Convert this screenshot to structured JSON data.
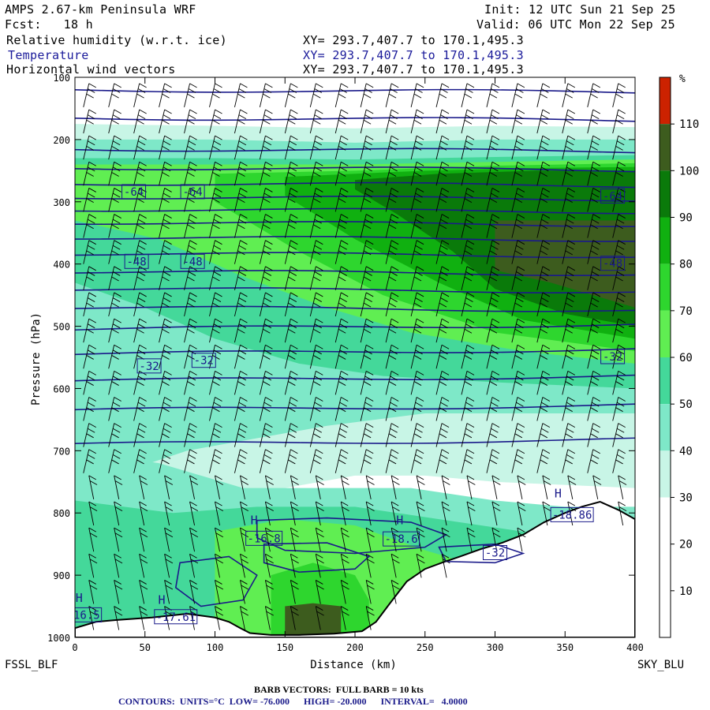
{
  "header": {
    "title": "AMPS 2.67-km Peninsula WRF",
    "fcst": "Fcst:   18 h",
    "init": "Init: 12 UTC Sun 21 Sep 25",
    "valid": "Valid: 06 UTC Mon 22 Sep 25",
    "field1": "Relative humidity (w.r.t. ice)",
    "field2": "Temperature",
    "field3": "Horizontal wind vectors",
    "xy": "XY= 293.7,407.7 to 170.1,495.3"
  },
  "endpoints": {
    "left": "FSSL_BLF",
    "right": "SKY_BLU"
  },
  "footer": {
    "barb": "BARB VECTORS:  FULL BARB = 10 kts",
    "contours": "CONTOURS:  UNITS=°C  LOW= -76.000      HIGH= -20.000      INTERVAL=   4.0000"
  },
  "colorbar": {
    "unit": "%",
    "levels": [
      10,
      20,
      30,
      40,
      50,
      60,
      70,
      80,
      90,
      100,
      110
    ],
    "colors": [
      "#ffffff",
      "#ffffff",
      "#ffffff",
      "#c8f5e6",
      "#7ee8c8",
      "#44d89a",
      "#60ee52",
      "#2ed62e",
      "#10b010",
      "#0a7a0a",
      "#3d5c1e",
      "#cc2200"
    ]
  },
  "colors": {
    "temp_contour": "#1a1a8a",
    "barb": "#000000",
    "terrain": "#ffffff"
  },
  "chart_data": {
    "type": "heatmap",
    "xlabel": "Distance (km)",
    "ylabel": "Pressure (hPa)",
    "xlim": [
      0,
      400
    ],
    "ylim": [
      1000,
      100
    ],
    "xticks": [
      0,
      50,
      100,
      150,
      200,
      250,
      300,
      350,
      400
    ],
    "yticks": [
      100,
      200,
      300,
      400,
      500,
      600,
      700,
      800,
      900,
      1000
    ],
    "temperature_labels": [
      {
        "text": "-64",
        "x": 42,
        "p": 285
      },
      {
        "text": "-64",
        "x": 84,
        "p": 285
      },
      {
        "text": "-64",
        "x": 384,
        "p": 292
      },
      {
        "text": "-48",
        "x": 44,
        "p": 397
      },
      {
        "text": "-48",
        "x": 84,
        "p": 397
      },
      {
        "text": "-48",
        "x": 384,
        "p": 400
      },
      {
        "text": "-32",
        "x": 53,
        "p": 565
      },
      {
        "text": "-32",
        "x": 92,
        "p": 556
      },
      {
        "text": "-32",
        "x": 384,
        "p": 550
      },
      {
        "text": "-16.8",
        "x": 135,
        "p": 842
      },
      {
        "text": "-18.6",
        "x": 233,
        "p": 843
      },
      {
        "text": "-18.86",
        "x": 355,
        "p": 804
      },
      {
        "text": "-16.5",
        "x": 6,
        "p": 965
      },
      {
        "text": "-17.61",
        "x": 72,
        "p": 968
      },
      {
        "text": "-32",
        "x": 300,
        "p": 865
      }
    ],
    "highs": [
      {
        "text": "H",
        "x": 128,
        "p": 818
      },
      {
        "text": "H",
        "x": 232,
        "p": 818
      },
      {
        "text": "H",
        "x": 345,
        "p": 775
      },
      {
        "text": "H",
        "x": 3,
        "p": 943
      },
      {
        "text": "H",
        "x": 62,
        "p": 946
      }
    ],
    "terrain": [
      [
        0,
        985
      ],
      [
        15,
        975
      ],
      [
        30,
        972
      ],
      [
        55,
        968
      ],
      [
        80,
        962
      ],
      [
        100,
        968
      ],
      [
        110,
        975
      ],
      [
        118,
        985
      ],
      [
        125,
        993
      ],
      [
        140,
        996
      ],
      [
        160,
        996
      ],
      [
        185,
        994
      ],
      [
        205,
        990
      ],
      [
        215,
        975
      ],
      [
        225,
        945
      ],
      [
        237,
        910
      ],
      [
        250,
        890
      ],
      [
        262,
        880
      ],
      [
        275,
        870
      ],
      [
        290,
        858
      ],
      [
        305,
        848
      ],
      [
        320,
        835
      ],
      [
        335,
        815
      ],
      [
        350,
        800
      ],
      [
        362,
        790
      ],
      [
        375,
        782
      ],
      [
        388,
        795
      ],
      [
        400,
        810
      ]
    ]
  }
}
